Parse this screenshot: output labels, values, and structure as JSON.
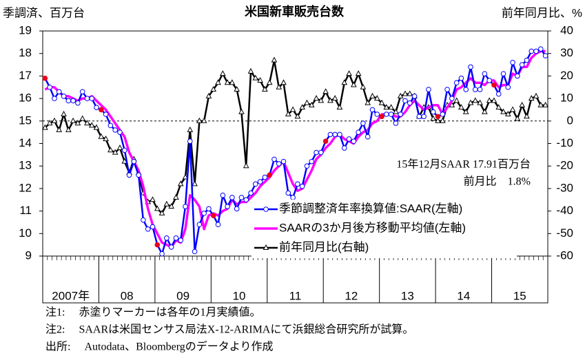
{
  "chart_data": {
    "type": "line",
    "title": "米国新車販売台数",
    "ylabel": "季調済、百万台",
    "y2label": "前年同月比、%",
    "year_labels": [
      "2007年",
      "08",
      "09",
      "10",
      "11",
      "12",
      "13",
      "14",
      "15"
    ],
    "ylim": [
      9,
      19
    ],
    "yticks": [
      9,
      10,
      11,
      12,
      13,
      14,
      15,
      16,
      17,
      18,
      19
    ],
    "y2lim": [
      -60,
      40
    ],
    "y2ticks": [
      -60,
      -50,
      -40,
      -30,
      -20,
      -10,
      0,
      10,
      20,
      30,
      40
    ],
    "zero_line": true,
    "january_color": "#e8001c",
    "legend": "lower-right",
    "series": [
      {
        "name": "季節調整済年率換算値:SAAR(左軸)",
        "color": "#0000ff",
        "marker": "circle",
        "values": [
          16.9,
          16.5,
          16.0,
          16.3,
          16.1,
          15.9,
          15.9,
          15.8,
          16.3,
          16.0,
          16.0,
          15.6,
          15.5,
          15.3,
          14.8,
          14.6,
          14.5,
          13.7,
          12.6,
          13.2,
          12.6,
          10.6,
          10.2,
          10.3,
          9.5,
          9.1,
          9.8,
          9.4,
          9.8,
          9.7,
          11.2,
          14.1,
          9.2,
          10.4,
          10.9,
          11.1,
          10.8,
          10.4,
          11.7,
          11.2,
          11.6,
          11.1,
          11.6,
          11.5,
          11.8,
          12.2,
          12.3,
          12.5,
          12.6,
          13.3,
          13.1,
          13.2,
          11.8,
          11.6,
          12.2,
          12.1,
          13.0,
          13.2,
          13.6,
          13.6,
          14.1,
          14.4,
          14.4,
          14.4,
          13.8,
          14.2,
          14.1,
          14.5,
          14.9,
          14.3,
          15.5,
          15.3,
          15.2,
          15.3,
          15.3,
          14.9,
          15.3,
          15.9,
          15.8,
          16.1,
          15.2,
          15.2,
          16.4,
          15.4,
          15.2,
          15.3,
          16.4,
          16.0,
          16.7,
          16.9,
          16.4,
          17.4,
          16.4,
          16.4,
          17.1,
          16.8,
          16.6,
          16.2,
          17.1,
          16.5,
          17.6,
          17.0,
          17.5,
          17.7,
          18.1,
          18.1,
          18.2,
          17.9
        ]
      },
      {
        "name": "SAARの3か月後方移動平均値(左軸)",
        "color": "#ff00ff",
        "marker": "none",
        "values": [
          16.4,
          16.5,
          16.5,
          16.3,
          16.1,
          16.1,
          16.0,
          15.9,
          16.0,
          16.0,
          16.1,
          15.9,
          15.7,
          15.5,
          15.2,
          14.9,
          14.6,
          14.3,
          13.6,
          13.2,
          12.8,
          12.1,
          11.1,
          10.4,
          10.0,
          9.6,
          9.5,
          9.4,
          9.7,
          9.6,
          10.2,
          11.7,
          11.5,
          11.2,
          10.2,
          10.8,
          10.9,
          10.8,
          11.0,
          11.1,
          11.5,
          11.3,
          11.4,
          11.4,
          11.6,
          11.8,
          12.1,
          12.3,
          12.5,
          12.8,
          13.0,
          13.2,
          12.7,
          12.2,
          11.9,
          12.0,
          12.4,
          12.8,
          13.3,
          13.5,
          13.8,
          14.0,
          14.3,
          14.4,
          14.2,
          14.1,
          14.0,
          14.3,
          14.5,
          14.6,
          14.9,
          15.0,
          15.3,
          15.3,
          15.3,
          15.2,
          15.2,
          15.4,
          15.7,
          15.9,
          15.7,
          15.5,
          15.6,
          15.7,
          15.7,
          15.3,
          15.6,
          15.9,
          16.4,
          16.5,
          16.7,
          16.9,
          16.7,
          16.7,
          16.6,
          16.8,
          16.8,
          16.5,
          16.6,
          16.6,
          17.1,
          17.0,
          17.4,
          17.4,
          17.8,
          18.0,
          18.1,
          18.1
        ]
      },
      {
        "name": "前年同月比(右軸)",
        "color": "#000000",
        "marker": "triangle",
        "axis": "y2",
        "values": [
          -3,
          -1,
          0,
          -4,
          3,
          -4,
          0,
          -1,
          1,
          -1,
          -2,
          -3,
          -7,
          -8,
          -13,
          -14,
          -12,
          -18,
          -23,
          -17,
          -23,
          -32,
          -36,
          -35,
          -39,
          -41,
          -37,
          -38,
          -34,
          -28,
          -25,
          -4,
          -28,
          0,
          0,
          11,
          14,
          17,
          21,
          17,
          17,
          14,
          4,
          -20,
          22,
          19,
          18,
          14,
          17,
          27,
          15,
          17,
          3,
          5,
          2,
          6,
          8,
          7,
          10,
          9,
          13,
          9,
          10,
          6,
          17,
          21,
          16,
          21,
          15,
          8,
          11,
          10,
          8,
          6,
          6,
          4,
          11,
          12,
          12,
          11,
          2,
          6,
          6,
          1,
          0,
          0,
          7,
          7,
          9,
          6,
          4,
          8,
          9,
          8,
          4,
          9,
          9,
          6,
          4,
          3,
          5,
          1,
          7,
          2,
          10,
          11,
          7,
          7
        ]
      }
    ],
    "annotations": [
      "15年12月SAAR 17.91百万台",
      "前月比　1.8%"
    ],
    "notes": [
      "注1:　 赤塗りマーカーは各年の1月実績値。",
      "注2:　 SAARは米国センサス局法X-12-ARIMAにて浜銀総合研究所が試算。",
      "出所:　 Autodata、Bloombergのデータより作成"
    ]
  }
}
